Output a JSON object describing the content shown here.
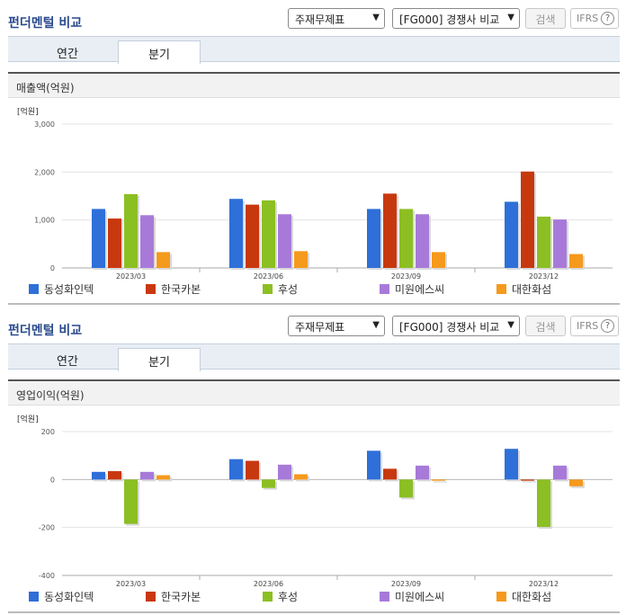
{
  "sections": [
    {
      "title": "펀더멘털 비교",
      "select1": "주재무제표",
      "select2": "[FG000] 경쟁사 비교",
      "search_label": "검색",
      "ifrs_label": "IFRS",
      "tabs": [
        "연간",
        "분기"
      ],
      "metric_label": "매출액(억원)"
    },
    {
      "title": "펀더멘털 비교",
      "select1": "주재무제표",
      "select2": "[FG000] 경쟁사 비교",
      "search_label": "검색",
      "ifrs_label": "IFRS",
      "tabs": [
        "연간",
        "분기"
      ],
      "metric_label": "영업이익(억원)"
    }
  ],
  "colors": [
    "#2e6fd9",
    "#c8380f",
    "#8cbf22",
    "#a77ad9",
    "#f59a1c"
  ],
  "chart_data": [
    {
      "type": "bar",
      "unit_label": "[억원]",
      "categories": [
        "2023/03",
        "2023/06",
        "2023/09",
        "2023/12"
      ],
      "ylim": [
        0,
        3000
      ],
      "yticks": [
        0,
        1000,
        2000,
        3000
      ],
      "ytick_labels": [
        "0",
        "1,000",
        "2,000",
        "3,000"
      ],
      "legend": "bottom",
      "series": [
        {
          "name": "동성화인텍",
          "values": [
            1230,
            1440,
            1230,
            1380
          ]
        },
        {
          "name": "한국카본",
          "values": [
            1030,
            1320,
            1550,
            2010
          ]
        },
        {
          "name": "후성",
          "values": [
            1540,
            1410,
            1230,
            1070
          ]
        },
        {
          "name": "미원에스씨",
          "values": [
            1100,
            1120,
            1120,
            1010
          ]
        },
        {
          "name": "대한화섬",
          "values": [
            330,
            350,
            330,
            290
          ]
        }
      ]
    },
    {
      "type": "bar",
      "unit_label": "[억원]",
      "categories": [
        "2023/03",
        "2023/06",
        "2023/09",
        "2023/12"
      ],
      "ylim": [
        -400,
        200
      ],
      "yticks": [
        -400,
        -200,
        0,
        200
      ],
      "ytick_labels": [
        "-400",
        "-200",
        "0",
        "200"
      ],
      "legend": "bottom",
      "series": [
        {
          "name": "동성화인텍",
          "values": [
            32,
            85,
            120,
            128
          ]
        },
        {
          "name": "한국카본",
          "values": [
            35,
            78,
            45,
            -5
          ]
        },
        {
          "name": "후성",
          "values": [
            -185,
            -35,
            -75,
            -198
          ]
        },
        {
          "name": "미원에스씨",
          "values": [
            32,
            62,
            58,
            58
          ]
        },
        {
          "name": "대한화섬",
          "values": [
            18,
            22,
            -5,
            -28
          ]
        }
      ]
    }
  ]
}
